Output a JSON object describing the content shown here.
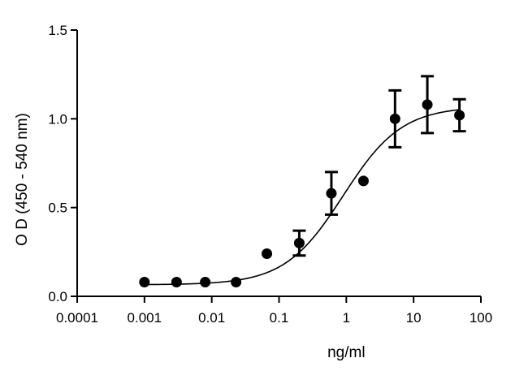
{
  "chart_data": {
    "type": "scatter",
    "title": "",
    "xlabel": "ng/ml",
    "ylabel": "O D (450 - 540 nm)",
    "x_scale": "log",
    "xlim": [
      0.0001,
      100
    ],
    "ylim": [
      0.0,
      1.5
    ],
    "x_ticks": [
      0.0001,
      0.001,
      0.01,
      0.1,
      1,
      10,
      100
    ],
    "x_tick_labels": [
      "0.0001",
      "0.001",
      "0.01",
      "0.1",
      "1",
      "10",
      "100"
    ],
    "y_ticks": [
      0.0,
      0.5,
      1.0,
      1.5
    ],
    "y_tick_labels": [
      "0.0",
      "0.5",
      "1.0",
      "1.5"
    ],
    "grid": false,
    "series": [
      {
        "x": [
          0.001,
          0.003,
          0.008,
          0.023,
          0.066,
          0.2,
          0.6,
          1.8,
          5.3,
          16,
          48
        ],
        "y": [
          0.08,
          0.08,
          0.08,
          0.08,
          0.24,
          0.3,
          0.58,
          0.65,
          1.0,
          1.08,
          1.02
        ],
        "err": [
          0,
          0,
          0,
          0,
          0,
          0.07,
          0.12,
          0,
          0.16,
          0.16,
          0.09
        ]
      }
    ],
    "fit": {
      "model": "sigmoidal dose-response",
      "bottom": 0.065,
      "top": 1.07,
      "ec50": 0.9,
      "hill": 1.0
    }
  }
}
